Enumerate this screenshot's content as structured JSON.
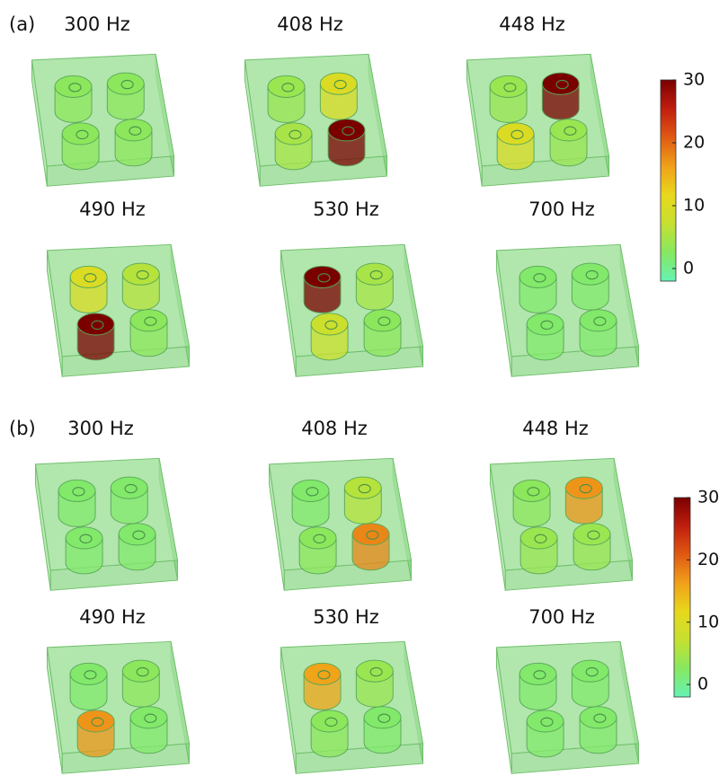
{
  "panels": [
    {
      "label": "(a)",
      "items": [
        {
          "freq": "300 Hz",
          "cylinders": [
            3,
            3,
            3,
            3
          ]
        },
        {
          "freq": "408 Hz",
          "cylinders": [
            4,
            10,
            5,
            30
          ]
        },
        {
          "freq": "448 Hz",
          "cylinders": [
            4,
            30,
            10,
            4
          ]
        },
        {
          "freq": "490 Hz",
          "cylinders": [
            10,
            6,
            30,
            3
          ]
        },
        {
          "freq": "530 Hz",
          "cylinders": [
            30,
            5,
            8,
            3
          ]
        },
        {
          "freq": "700 Hz",
          "cylinders": [
            2,
            2,
            2,
            2
          ]
        }
      ],
      "colorbar": {
        "lim": [
          -2,
          30
        ],
        "ticks": [
          0,
          10,
          20,
          30
        ]
      }
    },
    {
      "label": "(b)",
      "items": [
        {
          "freq": "300 Hz",
          "cylinders": [
            2,
            2,
            2,
            2
          ]
        },
        {
          "freq": "408 Hz",
          "cylinders": [
            2,
            6,
            3,
            18
          ]
        },
        {
          "freq": "448 Hz",
          "cylinders": [
            3,
            17,
            4,
            4
          ]
        },
        {
          "freq": "490 Hz",
          "cylinders": [
            2,
            3,
            17,
            2
          ]
        },
        {
          "freq": "530 Hz",
          "cylinders": [
            16,
            4,
            3,
            2
          ]
        },
        {
          "freq": "700 Hz",
          "cylinders": [
            2,
            2,
            2,
            2
          ]
        }
      ],
      "colorbar": {
        "lim": [
          -2,
          30
        ],
        "ticks": [
          0,
          10,
          20,
          30
        ]
      }
    }
  ],
  "colormap": [
    "#66f2b4",
    "#86e860",
    "#c6e030",
    "#e8d81c",
    "#f0a01a",
    "#e05a12",
    "#c01e0e",
    "#7a0000"
  ]
}
